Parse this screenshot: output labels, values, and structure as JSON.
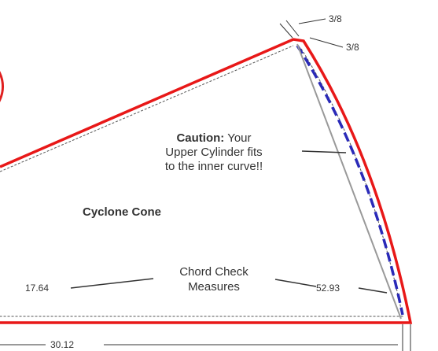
{
  "labels": {
    "seam_top": "3/8",
    "seam_side": "3/8",
    "part_name": "Cyclone Cone"
  },
  "caution": {
    "heading": "Caution:",
    "lines": [
      "Your",
      "Upper Cylinder fits",
      "to the inner curve!!"
    ]
  },
  "chord": {
    "lines": [
      "Chord Check",
      "Measures"
    ],
    "left_value": "17.64",
    "right_value": "52.93"
  },
  "bottom_value": "30.12"
}
